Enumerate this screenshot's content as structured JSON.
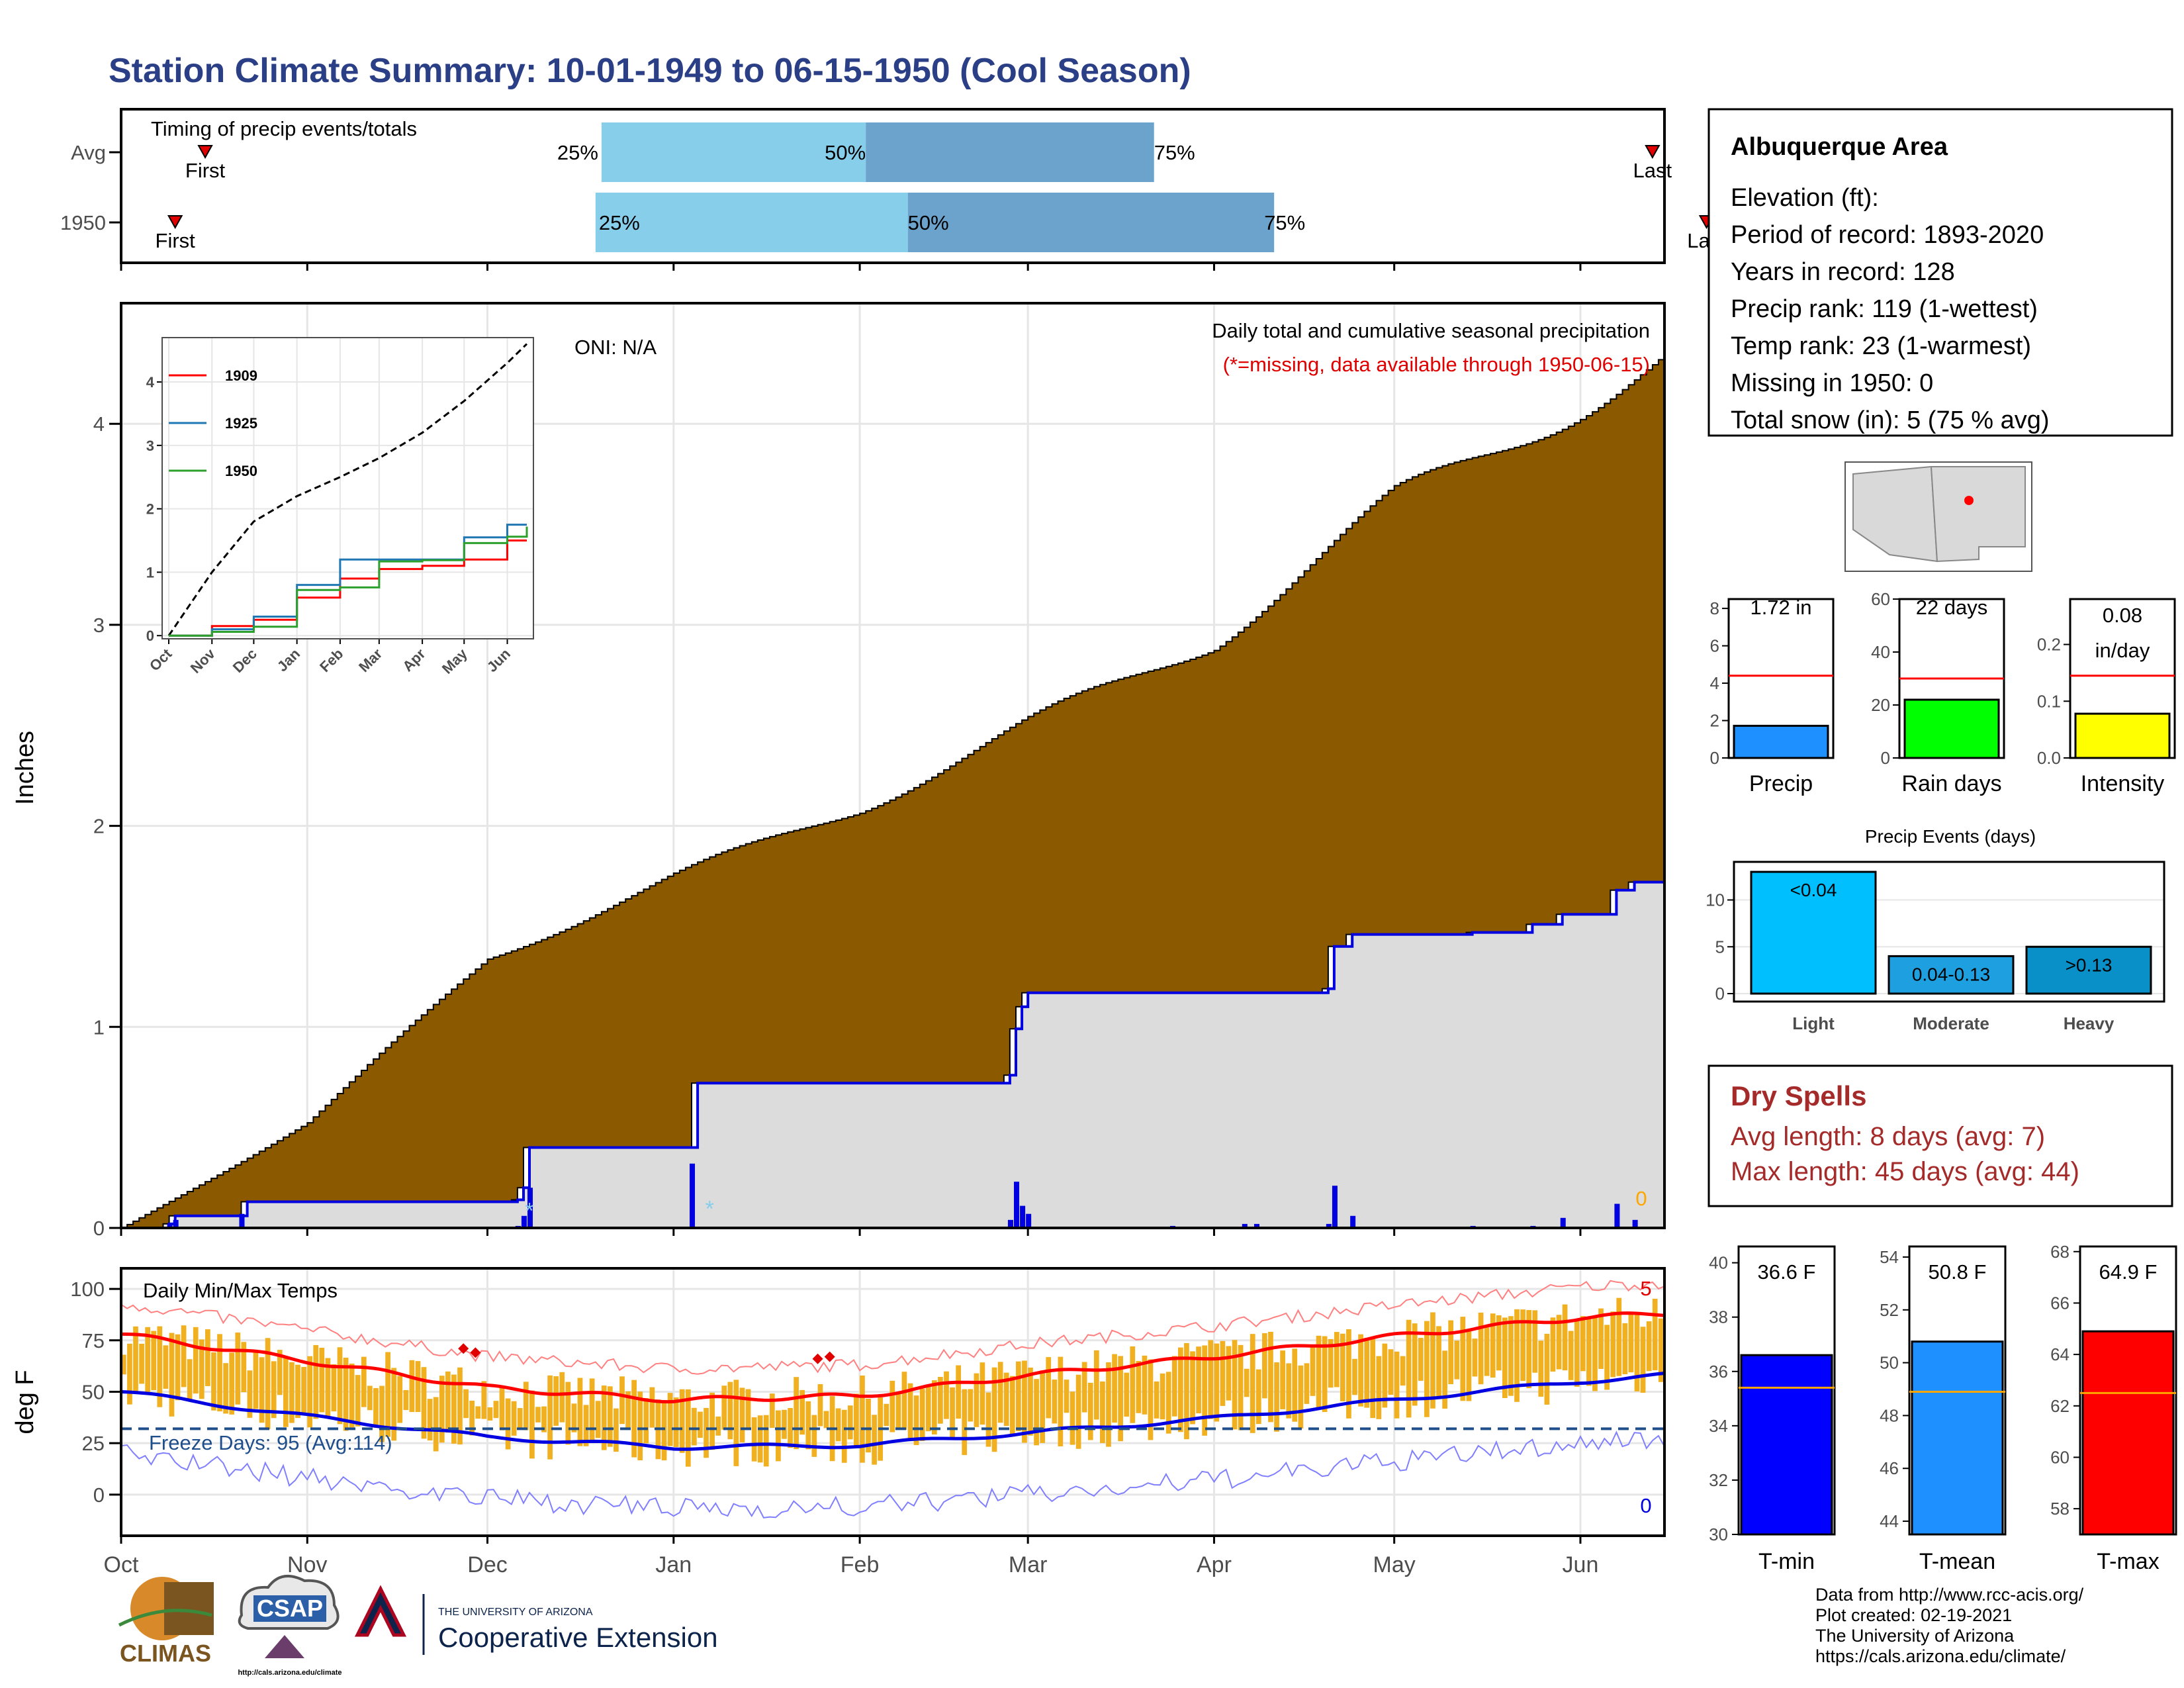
{
  "title": "Station Climate Summary: 10-01-1949 to 06-15-1950 (Cool Season)",
  "colors": {
    "title": "#2b3f86",
    "cumAvg": "#8b5a00",
    "cum1950": "#0000e0",
    "dailyBar": "#0000e0",
    "dry": "#a52a2a",
    "q_light": "#87ceeb",
    "q_dark": "#6ba3cc",
    "temp_bar": "#f0b020",
    "tmax_line": "#ff0000",
    "tmin_line": "#0000e0",
    "freeze": "#1f4e8c",
    "panel_border": "#000000",
    "grid": "#e6e6e6"
  },
  "timing": {
    "label": "Timing of precip events/totals",
    "rows": [
      {
        "name": "Avg",
        "first_doy": 14,
        "q25_doy": 80,
        "q50_doy": 124,
        "q75_doy": 172,
        "last_doy": 255
      },
      {
        "name": "1950",
        "first_doy": 9,
        "q25_doy": 79,
        "q50_doy": 131,
        "q75_doy": 192,
        "last_doy": 264
      }
    ],
    "labels": {
      "first": "First",
      "last": "Last",
      "q25": "25%",
      "q50": "50%",
      "q75": "75%"
    }
  },
  "main": {
    "ylabel": "Inches",
    "title": "Daily total and cumulative seasonal precipitation",
    "note": "(*=missing, data available through 1950-06-15)",
    "oni": "ONI: N/A",
    "missing_count": "0",
    "yticks": [
      "0",
      "1",
      "2",
      "3",
      "4"
    ],
    "ylim": [
      0,
      4.6
    ]
  },
  "inset": {
    "legend": [
      "1909",
      "1925",
      "1950"
    ],
    "legend_colors": [
      "#ff0000",
      "#1f77b4",
      "#2ca02c"
    ],
    "yticks": [
      "0",
      "1",
      "2",
      "3",
      "4"
    ],
    "xticks": [
      "Oct",
      "Nov",
      "Dec",
      "Jan",
      "Feb",
      "Mar",
      "Apr",
      "May",
      "Jun"
    ]
  },
  "temps": {
    "label": "Daily Min/Max Temps",
    "ylabel": "deg F",
    "yticks": [
      "0",
      "25",
      "50",
      "75",
      "100"
    ],
    "freeze": "Freeze Days: 95 (Avg:114)",
    "count_top": "5",
    "count_bottom": "0"
  },
  "x_months": [
    "Oct",
    "Nov",
    "Dec",
    "Jan",
    "Feb",
    "Mar",
    "Apr",
    "May",
    "Jun"
  ],
  "station": {
    "name": "Albuquerque Area",
    "lines": [
      "Elevation (ft):",
      "Period of record: 1893-2020",
      "Years in record: 128",
      "Precip rank: 119 (1-wettest)",
      "Temp rank: 23 (1-warmest)",
      "Missing in 1950: 0",
      "Total snow (in): 5 (75 % avg)"
    ]
  },
  "mini": [
    {
      "label": "Precip",
      "value_text": "1.72 in",
      "value": 1.72,
      "avg": 4.4,
      "ymax": 8.5,
      "yticks": [
        "0",
        "2",
        "4",
        "6",
        "8"
      ],
      "tickvals": [
        0,
        2,
        4,
        6,
        8
      ],
      "color": "#1e90ff"
    },
    {
      "label": "Rain days",
      "value_text": "22 days",
      "value": 22,
      "avg": 30,
      "ymax": 60,
      "yticks": [
        "0",
        "20",
        "40",
        "60"
      ],
      "tickvals": [
        0,
        20,
        40,
        60
      ],
      "color": "#00ff00"
    },
    {
      "label": "Intensity",
      "value_text": "0.08 in/day",
      "value": 0.078,
      "avg": 0.145,
      "ymax": 0.28,
      "yticks": [
        "0.0",
        "0.1",
        "0.2"
      ],
      "tickvals": [
        0,
        0.1,
        0.2
      ],
      "color": "#ffff00"
    }
  ],
  "events": {
    "title": "Precip Events (days)",
    "yticks": [
      "0",
      "5",
      "10"
    ],
    "bars": [
      {
        "label": "Light",
        "inner": "<0.04",
        "value": 13,
        "color": "#00bfff"
      },
      {
        "label": "Moderate",
        "inner": "0.04-0.13",
        "value": 4,
        "color": "#1ea0e0"
      },
      {
        "label": "Heavy",
        "inner": ">0.13",
        "value": 5,
        "color": "#0a90c8"
      }
    ]
  },
  "dry": {
    "title": "Dry Spells",
    "avg": "Avg length: 8 days (avg: 7)",
    "max": "Max length: 45 days (avg: 44)"
  },
  "tbars": [
    {
      "label": "T-min",
      "value_text": "36.6 F",
      "value": 36.6,
      "avg": 35.4,
      "ymin": 30,
      "ymax": 40.6,
      "yticks": [
        "30",
        "32",
        "34",
        "36",
        "38",
        "40"
      ],
      "tickvals": [
        30,
        32,
        34,
        36,
        38,
        40
      ],
      "color": "#0000ff"
    },
    {
      "label": "T-mean",
      "value_text": "50.8 F",
      "value": 50.8,
      "avg": 48.9,
      "ymin": 43.5,
      "ymax": 54.4,
      "yticks": [
        "44",
        "46",
        "48",
        "50",
        "52",
        "54"
      ],
      "tickvals": [
        44,
        46,
        48,
        50,
        52,
        54
      ],
      "color": "#1e90ff"
    },
    {
      "label": "T-max",
      "value_text": "64.9 F",
      "value": 64.9,
      "avg": 62.5,
      "ymin": 57,
      "ymax": 68.2,
      "yticks": [
        "58",
        "60",
        "62",
        "64",
        "66",
        "68"
      ],
      "tickvals": [
        58,
        60,
        62,
        64,
        66,
        68
      ],
      "color": "#ff0000"
    }
  ],
  "credits": [
    "Data from http://www.rcc-acis.org/",
    "Plot created: 02-19-2021",
    "The University of Arizona",
    "https://cals.arizona.edu/climate/"
  ],
  "logos": {
    "climas": "CLIMAS",
    "csap": "CSAP",
    "csap_url": "http://cals.arizona.edu/climate",
    "ua_small": "THE UNIVERSITY OF ARIZONA",
    "ua_big": "Cooperative Extension"
  },
  "chart_data": [
    {
      "type": "bar",
      "title": "Timing of precip events/totals",
      "categories": [
        "Avg",
        "1950"
      ],
      "series": [
        {
          "name": "First",
          "values": [
            "Oct 15",
            "Oct 10"
          ]
        },
        {
          "name": "25%",
          "values": [
            "Dec 19",
            "Dec 18"
          ]
        },
        {
          "name": "50%",
          "values": [
            "Feb 1",
            "Feb 8"
          ]
        },
        {
          "name": "75%",
          "values": [
            "Mar 21",
            "Apr 10"
          ]
        },
        {
          "name": "Last",
          "values": [
            "Jun 12",
            "Jun 21"
          ]
        }
      ]
    },
    {
      "type": "area",
      "title": "Daily total and cumulative seasonal precipitation",
      "xlabel": "",
      "ylabel": "Inches",
      "ylim": [
        0,
        4.6
      ],
      "x": [
        "Oct 1",
        "Nov 1",
        "Dec 1",
        "Jan 1",
        "Feb 1",
        "Mar 1",
        "Apr 1",
        "May 1",
        "Jun 1",
        "Jun 15"
      ],
      "series": [
        {
          "name": "Avg cumulative",
          "values": [
            0,
            0.52,
            1.35,
            1.74,
            2.1,
            2.5,
            2.93,
            3.62,
            4.1,
            4.32
          ]
        },
        {
          "name": "1950 cumulative",
          "values": [
            0,
            0.06,
            0.14,
            0.72,
            0.76,
            1.17,
            1.19,
            1.46,
            1.56,
            1.72
          ]
        }
      ]
    },
    {
      "type": "line",
      "title": "",
      "x": [
        "Oct 1",
        "Nov 1",
        "Dec 1",
        "Jan 1",
        "Feb 1",
        "Mar 1",
        "Apr 1",
        "May 1",
        "Jun 1",
        "Jun 15"
      ],
      "series": [
        {
          "name": "",
          "values": [
            0,
            1.0,
            1.8,
            2.2,
            2.5,
            2.8,
            3.2,
            3.7,
            4.3,
            4.6
          ]
        },
        {
          "name": "1909",
          "values": [
            0,
            0.15,
            0.25,
            0.6,
            0.9,
            1.05,
            1.1,
            1.2,
            1.5,
            1.5
          ]
        },
        {
          "name": "1925",
          "values": [
            0,
            0.1,
            0.3,
            0.8,
            1.2,
            1.2,
            1.2,
            1.55,
            1.75,
            1.75
          ]
        },
        {
          "name": "1950",
          "values": [
            0,
            0.06,
            0.14,
            0.72,
            0.76,
            1.17,
            1.19,
            1.46,
            1.56,
            1.72
          ]
        }
      ]
    },
    {
      "type": "line",
      "title": "Daily Min/Max Temps",
      "ylabel": "deg F",
      "ylim": [
        -20,
        110
      ],
      "x": [
        "Oct 1",
        "Nov 1",
        "Dec 1",
        "Jan 1",
        "Feb 1",
        "Mar 1",
        "Apr 1",
        "May 1",
        "Jun 1",
        "Jun 15"
      ],
      "series": [
        {
          "name": "Avg max",
          "values": [
            78,
            65,
            52,
            46,
            48,
            58,
            67,
            77,
            86,
            88
          ]
        },
        {
          "name": "Avg min",
          "values": [
            50,
            38,
            28,
            23,
            24,
            30,
            37,
            46,
            55,
            58
          ]
        }
      ]
    },
    {
      "type": "bar",
      "title": "",
      "categories": [
        "Precip",
        "Rain days",
        "Intensity"
      ],
      "series": [
        {
          "name": "",
          "values": [
            1.72,
            22,
            0.08
          ]
        }
      ]
    },
    {
      "type": "bar",
      "title": "Precip Events (days)",
      "categories": [
        "Light",
        "Moderate",
        "Heavy"
      ],
      "series": [
        {
          "name": "",
          "values": [
            13,
            4,
            5
          ]
        }
      ]
    },
    {
      "type": "bar",
      "title": "",
      "categories": [
        "T-min",
        "T-mean",
        "T-max"
      ],
      "series": [
        {
          "name": "",
          "values": [
            36.6,
            50.8,
            64.9
          ]
        }
      ]
    }
  ]
}
